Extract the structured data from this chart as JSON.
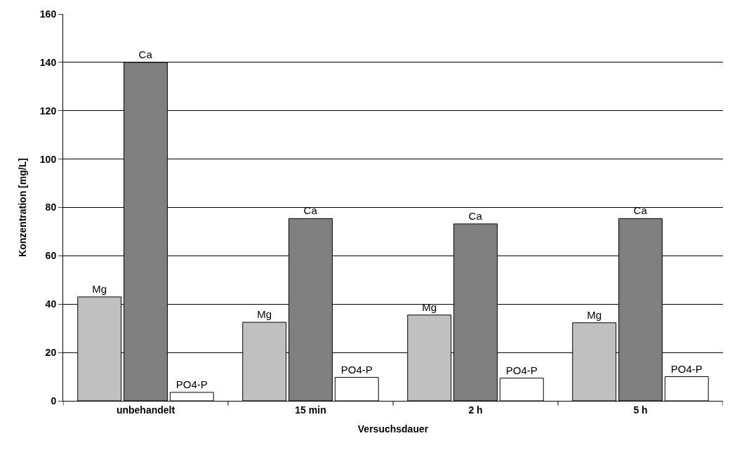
{
  "chart_data": {
    "type": "bar",
    "xlabel": "Versuchsdauer",
    "ylabel": "Konzentration [mg/L]",
    "categories": [
      "unbehandelt",
      "15 min",
      "2 h",
      "5 h"
    ],
    "series": [
      {
        "name": "Mg",
        "color": "#c0c0c0",
        "values": [
          43,
          32.5,
          35.5,
          32.3
        ]
      },
      {
        "name": "Ca",
        "color": "#808080",
        "values": [
          140,
          75.4,
          73.2,
          75.4
        ]
      },
      {
        "name": "PO4-P",
        "color": "#ffffff",
        "values": [
          3.5,
          9.7,
          9.4,
          10
        ]
      }
    ],
    "ylim": [
      0,
      160
    ],
    "yticks": [
      0,
      20,
      40,
      60,
      80,
      100,
      120,
      140,
      160
    ],
    "grid": "y",
    "legend": false
  }
}
